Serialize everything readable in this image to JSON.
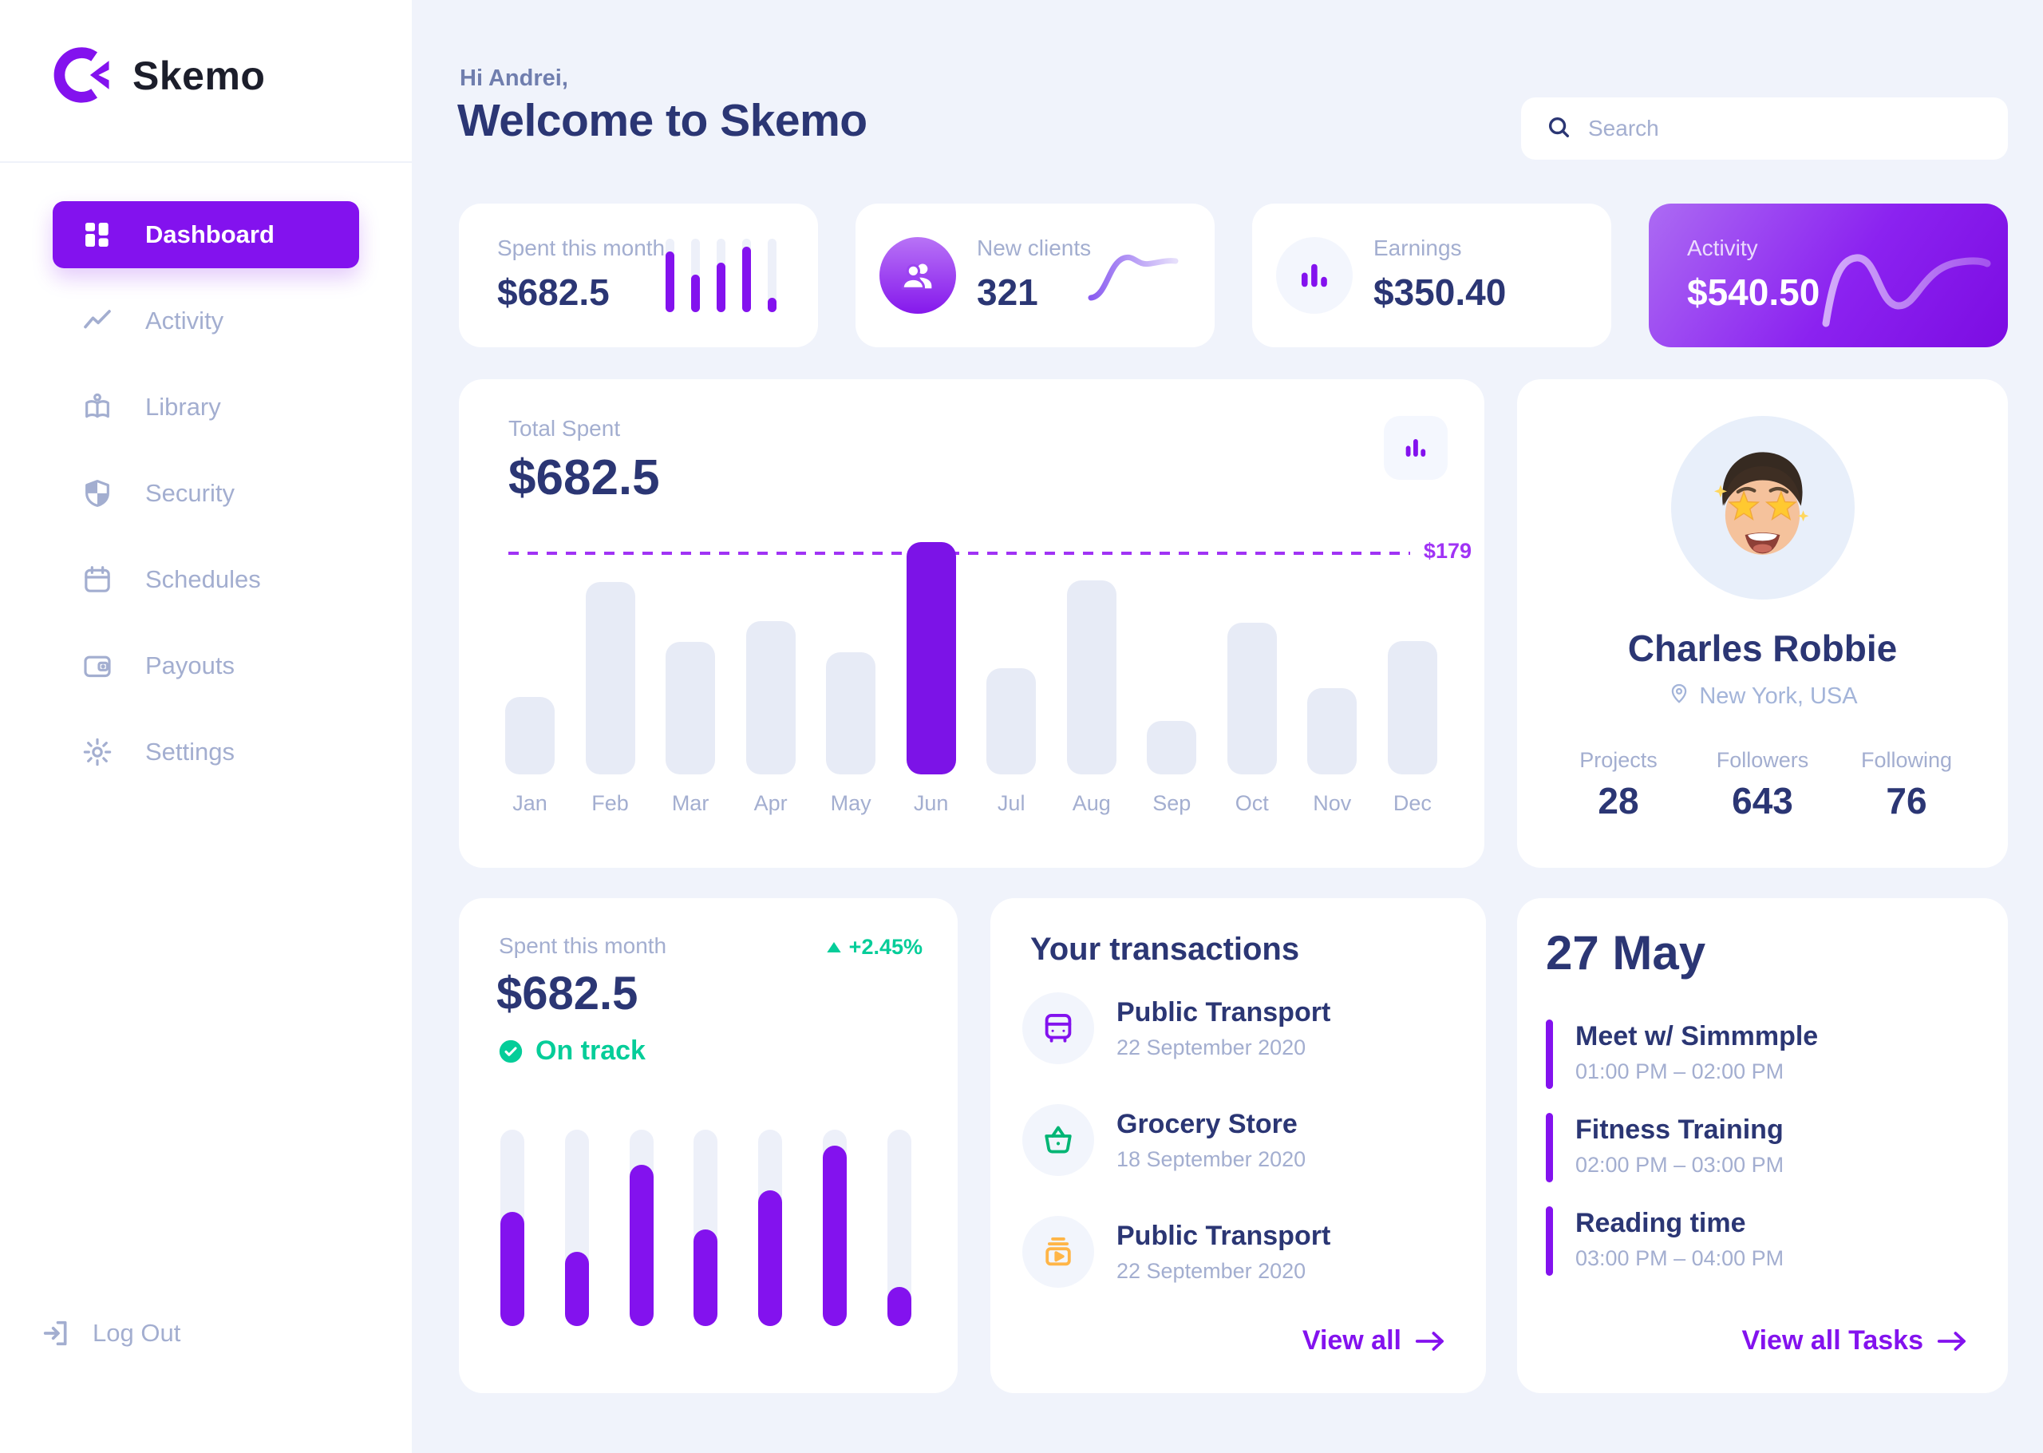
{
  "app": {
    "name": "Skemo"
  },
  "colors": {
    "accent": "#8312EE",
    "accent_dark": "#7C13E7",
    "dashed_line": "#A033F5",
    "navy": "#2B3674",
    "muted": "#A3AED0",
    "greeting": "#707EAE",
    "background": "#F0F3FB",
    "bar_track": "#E7EBF6",
    "green": "#05CD99",
    "green_icon": "#01B574",
    "orange_icon": "#FFB547"
  },
  "sidebar": {
    "items": [
      {
        "id": "dashboard",
        "label": "Dashboard",
        "icon": "grid-icon",
        "active": true
      },
      {
        "id": "activity",
        "label": "Activity",
        "icon": "trend-icon",
        "active": false
      },
      {
        "id": "library",
        "label": "Library",
        "icon": "book-icon",
        "active": false
      },
      {
        "id": "security",
        "label": "Security",
        "icon": "shield-icon",
        "active": false
      },
      {
        "id": "schedules",
        "label": "Schedules",
        "icon": "calendar-icon",
        "active": false
      },
      {
        "id": "payouts",
        "label": "Payouts",
        "icon": "wallet-icon",
        "active": false
      },
      {
        "id": "settings",
        "label": "Settings",
        "icon": "gear-icon",
        "active": false
      }
    ],
    "logout_label": "Log Out"
  },
  "header": {
    "greeting": "Hi Andrei,",
    "title": "Welcome to Skemo",
    "search_placeholder": "Search"
  },
  "stat_cards": [
    {
      "label": "Spent this month",
      "value": "$682.5",
      "mini_bars_percent": [
        83,
        51,
        67,
        89,
        20
      ]
    },
    {
      "label": "New clients",
      "value": "321",
      "icon": "people-icon"
    },
    {
      "label": "Earnings",
      "value": "$350.40",
      "icon": "bars-icon"
    },
    {
      "label": "Activity",
      "value": "$540.50",
      "accent": true
    }
  ],
  "total_spent": {
    "label": "Total Spent",
    "value": "$682.5"
  },
  "chart_data": {
    "type": "bar",
    "title": "Total Spent",
    "total_value": "$682.5",
    "categories": [
      "Jan",
      "Feb",
      "Mar",
      "Apr",
      "May",
      "Jun",
      "Jul",
      "Aug",
      "Sep",
      "Oct",
      "Nov",
      "Dec"
    ],
    "values": [
      63,
      156,
      107,
      124,
      99,
      188,
      86,
      157,
      43,
      123,
      70,
      108
    ],
    "highlight_category": "Jun",
    "threshold": {
      "value": 179,
      "label": "$179"
    },
    "xlabel": "",
    "ylabel": "",
    "ylim": [
      0,
      195
    ],
    "grid": false,
    "legend": false
  },
  "spent_month": {
    "label": "Spent this month",
    "change": "+2.45%",
    "value": "$682.5",
    "status": "On track",
    "bars_percent": [
      58,
      38,
      82,
      49,
      69,
      92,
      20
    ]
  },
  "transactions": {
    "title": "Your transactions",
    "view_all": "View all",
    "items": [
      {
        "name": "Public Transport",
        "date": "22 September 2020",
        "icon": "bus-icon",
        "color": "#8312EE"
      },
      {
        "name": "Grocery Store",
        "date": "18 September 2020",
        "icon": "basket-icon",
        "color": "#01B574"
      },
      {
        "name": "Public Transport",
        "date": "22 September 2020",
        "icon": "subscription-icon",
        "color": "#FFB547"
      }
    ]
  },
  "profile": {
    "name": "Charles Robbie",
    "location": "New York, USA",
    "stats": [
      {
        "label": "Projects",
        "value": "28"
      },
      {
        "label": "Followers",
        "value": "643"
      },
      {
        "label": "Following",
        "value": "76"
      }
    ]
  },
  "tasks": {
    "date": "27 May",
    "view_all": "View all Tasks",
    "items": [
      {
        "title": "Meet w/ Simmmple",
        "time": "01:00 PM – 02:00 PM"
      },
      {
        "title": "Fitness Training",
        "time": "02:00 PM – 03:00 PM"
      },
      {
        "title": "Reading time",
        "time": "03:00 PM – 04:00 PM"
      }
    ]
  }
}
